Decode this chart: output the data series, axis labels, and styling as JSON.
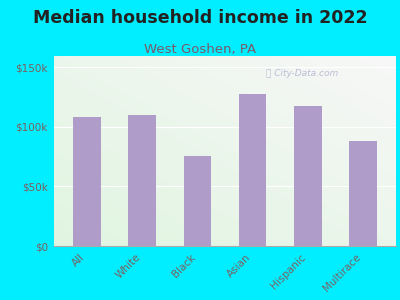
{
  "title": "Median household income in 2022",
  "subtitle": "West Goshen, PA",
  "categories": [
    "All",
    "White",
    "Black",
    "Asian",
    "Hispanic",
    "Multirace"
  ],
  "values": [
    108000,
    110000,
    76000,
    128000,
    118000,
    88000
  ],
  "bar_color": "#b09cc8",
  "background_outer": "#00eeff",
  "title_fontsize": 12.5,
  "subtitle_fontsize": 9.5,
  "subtitle_color": "#7a5a6a",
  "title_color": "#222222",
  "ylabel_ticks": [
    "$0",
    "$50k",
    "$100k",
    "$150k"
  ],
  "ytick_values": [
    0,
    50000,
    100000,
    150000
  ],
  "ylim": [
    0,
    160000
  ],
  "tick_color": "#7a6060",
  "watermark": "City-Data.com"
}
